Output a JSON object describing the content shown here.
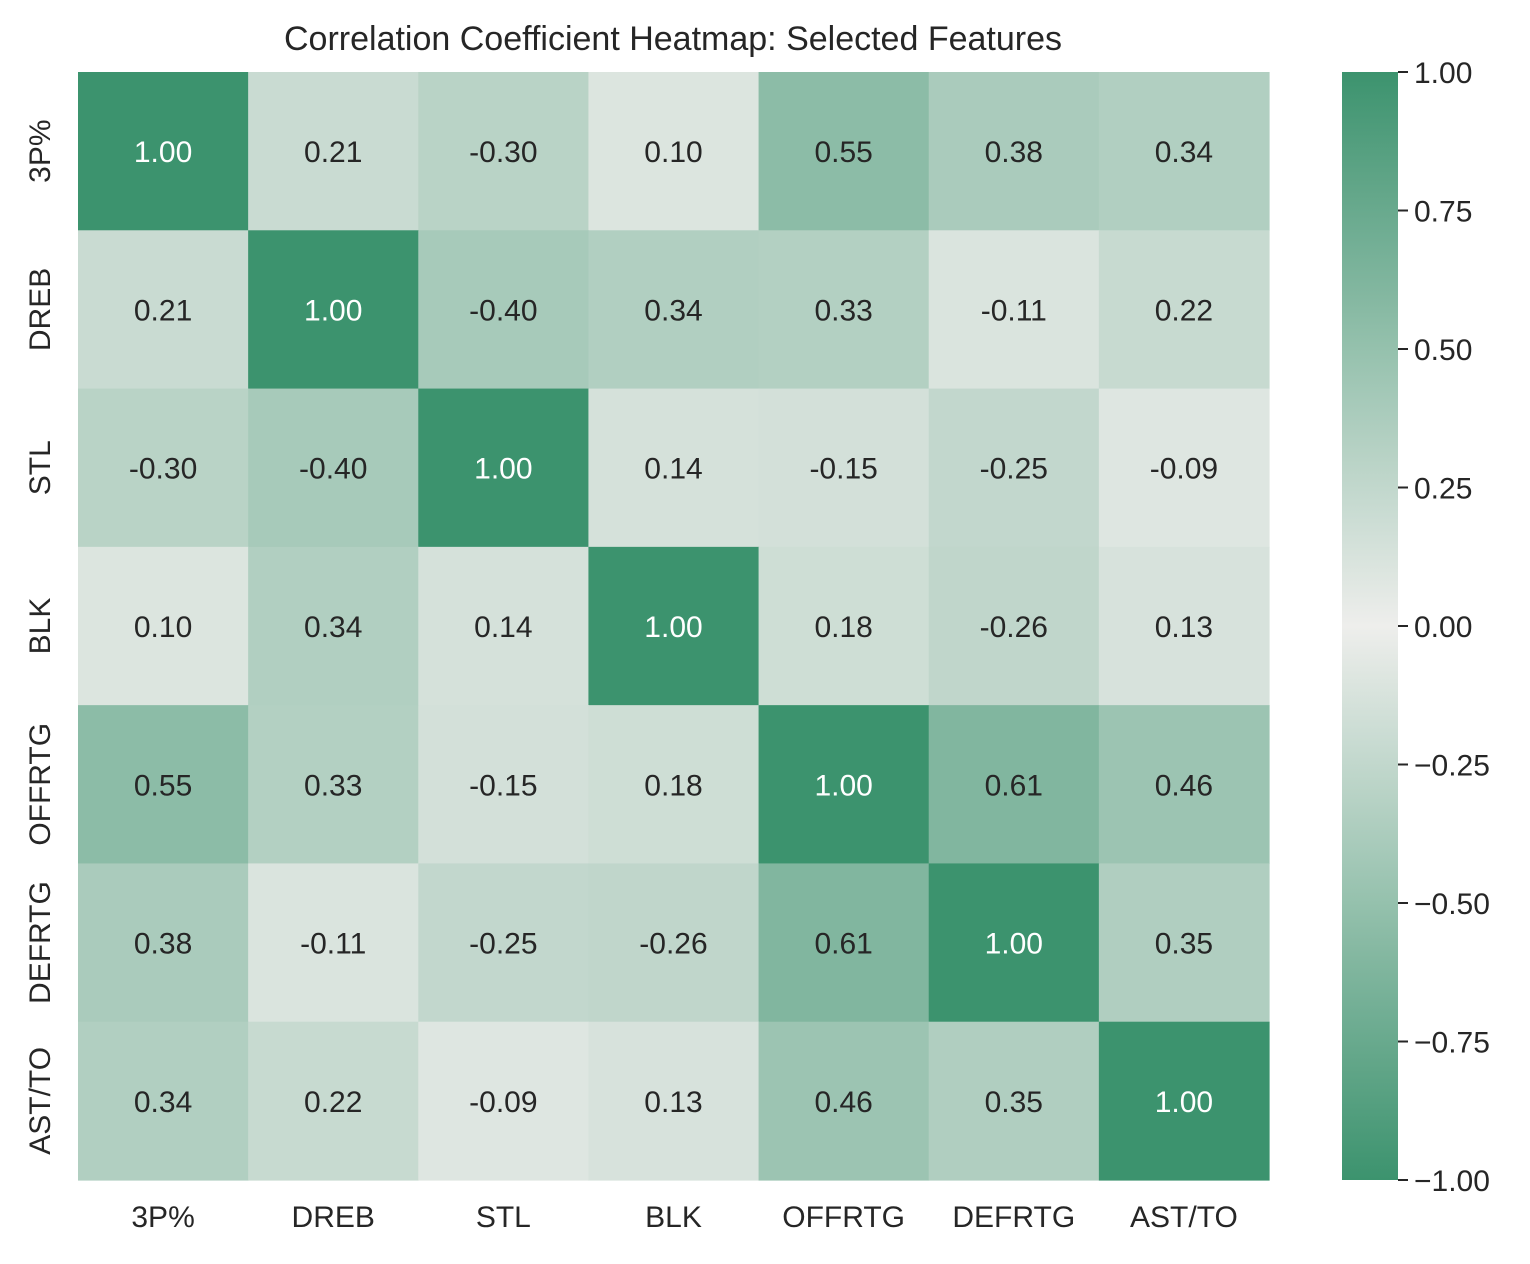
{
  "chart_data": {
    "type": "heatmap",
    "title": "Correlation Coefficient Heatmap: Selected Features",
    "x_labels": [
      "3P%",
      "DREB",
      "STL",
      "BLK",
      "OFFRTG",
      "DEFRTG",
      "AST/TO"
    ],
    "y_labels": [
      "3P%",
      "DREB",
      "STL",
      "BLK",
      "OFFRTG",
      "DEFRTG",
      "AST/TO"
    ],
    "values": [
      [
        1.0,
        0.21,
        -0.3,
        0.1,
        0.55,
        0.38,
        0.34
      ],
      [
        0.21,
        1.0,
        -0.4,
        0.34,
        0.33,
        -0.11,
        0.22
      ],
      [
        -0.3,
        -0.4,
        1.0,
        0.14,
        -0.15,
        -0.25,
        -0.09
      ],
      [
        0.1,
        0.34,
        0.14,
        1.0,
        0.18,
        -0.26,
        0.13
      ],
      [
        0.55,
        0.33,
        -0.15,
        0.18,
        1.0,
        0.61,
        0.46
      ],
      [
        0.38,
        -0.11,
        -0.25,
        -0.26,
        0.61,
        1.0,
        0.35
      ],
      [
        0.34,
        0.22,
        -0.09,
        0.13,
        0.46,
        0.35,
        1.0
      ]
    ],
    "annotations": [
      [
        "1.00",
        "0.21",
        "-0.30",
        "0.10",
        "0.55",
        "0.38",
        "0.34"
      ],
      [
        "0.21",
        "1.00",
        "-0.40",
        "0.34",
        "0.33",
        "-0.11",
        "0.22"
      ],
      [
        "-0.30",
        "-0.40",
        "1.00",
        "0.14",
        "-0.15",
        "-0.25",
        "-0.09"
      ],
      [
        "0.10",
        "0.34",
        "0.14",
        "1.00",
        "0.18",
        "-0.26",
        "0.13"
      ],
      [
        "0.55",
        "0.33",
        "-0.15",
        "0.18",
        "1.00",
        "0.61",
        "0.46"
      ],
      [
        "0.38",
        "-0.11",
        "-0.25",
        "-0.26",
        "0.61",
        "1.00",
        "0.35"
      ],
      [
        "0.34",
        "0.22",
        "-0.09",
        "0.13",
        "0.46",
        "0.35",
        "1.00"
      ]
    ],
    "vmin": -1.0,
    "vmax": 1.0,
    "colormap": {
      "type": "diverging-symmetric",
      "center_color": "#eeeeec",
      "extreme_color": "#3c936e",
      "note_text_dark": "#262626",
      "note_text_light": "#ffffff"
    },
    "colorbar": {
      "ticks": [
        1.0,
        0.75,
        0.5,
        0.25,
        0.0,
        -0.25,
        -0.5,
        -0.75,
        -1.0
      ],
      "tick_labels": [
        "1.00",
        "0.75",
        "0.50",
        "0.25",
        "0.00",
        "−0.25",
        "−0.50",
        "−0.75",
        "−1.00"
      ]
    },
    "grid": false,
    "colorbar_placement": "right"
  }
}
